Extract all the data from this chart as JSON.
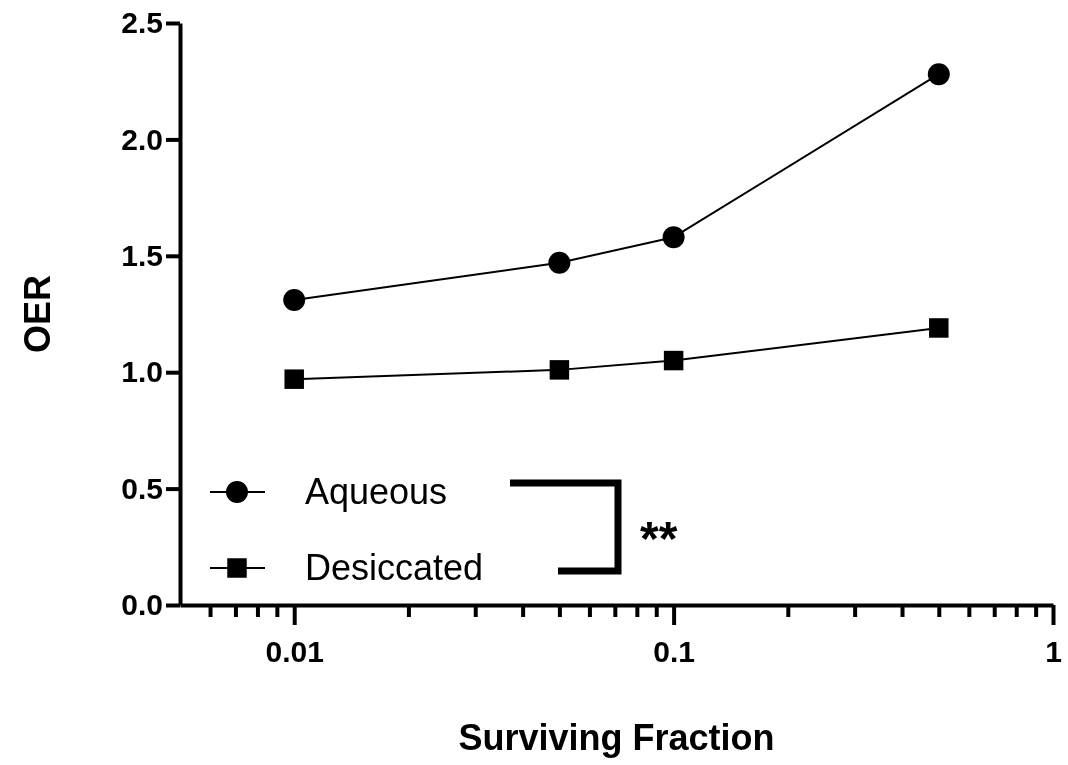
{
  "chart_data": {
    "type": "line",
    "xlabel": "Surviving Fraction",
    "ylabel": "OER",
    "log": "x",
    "x": [
      0.01,
      0.05,
      0.1,
      0.5
    ],
    "series": [
      {
        "name": "Aqueous",
        "color": "#000000",
        "marker": "circle",
        "values": [
          1.31,
          1.47,
          1.58,
          2.28
        ]
      },
      {
        "name": "Desiccated",
        "color": "#000000",
        "marker": "square",
        "values": [
          0.97,
          1.01,
          1.05,
          1.19
        ]
      }
    ],
    "xlim": [
      0.005,
      1
    ],
    "xticks": [
      {
        "value": 0.006,
        "label": null
      },
      {
        "value": 0.007,
        "label": null
      },
      {
        "value": 0.008,
        "label": null
      },
      {
        "value": 0.009,
        "label": null
      },
      "0.01",
      {
        "value": 0.02,
        "label": null
      },
      {
        "value": 0.03,
        "label": null
      },
      {
        "value": 0.04,
        "label": null
      },
      {
        "value": 0.05,
        "label": null
      },
      {
        "value": 0.06,
        "label": null
      },
      {
        "value": 0.07,
        "label": null
      },
      {
        "value": 0.08,
        "label": null
      },
      {
        "value": 0.09,
        "label": null
      },
      0.1,
      {
        "value": 0.2,
        "label": null
      },
      {
        "value": 0.3,
        "label": null
      },
      {
        "value": 0.4,
        "label": null
      },
      {
        "value": 0.5,
        "label": null
      },
      {
        "value": 0.6,
        "label": null
      },
      {
        "value": 0.7,
        "label": null
      },
      {
        "value": 0.8,
        "label": null
      },
      {
        "value": 0.9,
        "label": null
      },
      1
    ],
    "ylim": [
      0,
      2.5
    ],
    "yticks": [
      {
        "value": 0,
        "label": "0.0"
      },
      {
        "value": 0.5,
        "label": "0.5"
      },
      {
        "value": 1,
        "label": "1.0"
      },
      {
        "value": 1.5,
        "label": "1.5"
      },
      {
        "value": 2,
        "label": "2.0"
      },
      {
        "value": 2.5,
        "label": "2.5"
      }
    ],
    "legend": "bottom left",
    "line_style": "solid",
    "grid": false,
    "annotations": [
      "**"
    ]
  }
}
